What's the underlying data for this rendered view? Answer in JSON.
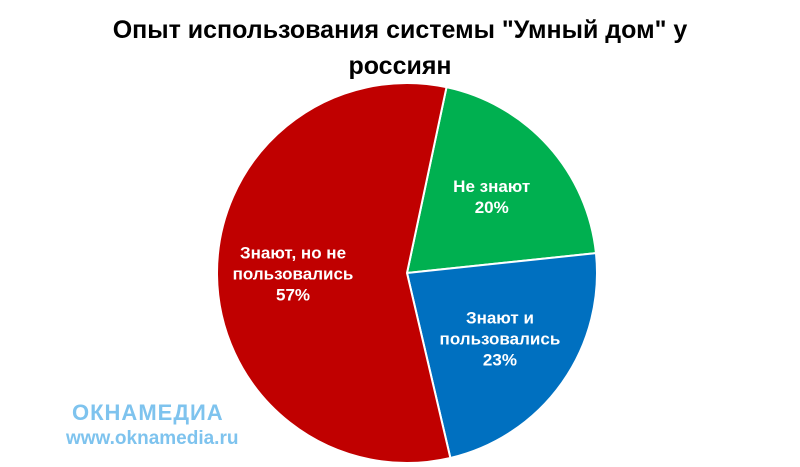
{
  "chart_data": {
    "type": "pie",
    "title": "Опыт использования системы \"Умный дом\" у россиян",
    "categories": [
      "Не знают",
      "Знают и пользовались",
      "Знают, но не пользовались"
    ],
    "values": [
      20,
      23,
      57
    ],
    "value_labels": [
      "20%",
      "23%",
      "57%"
    ],
    "colors": [
      "#00b050",
      "#0070c0",
      "#c00000"
    ]
  },
  "watermark": {
    "logo": "ОКНАМЕДИА",
    "url": "www.oknamedia.ru"
  }
}
